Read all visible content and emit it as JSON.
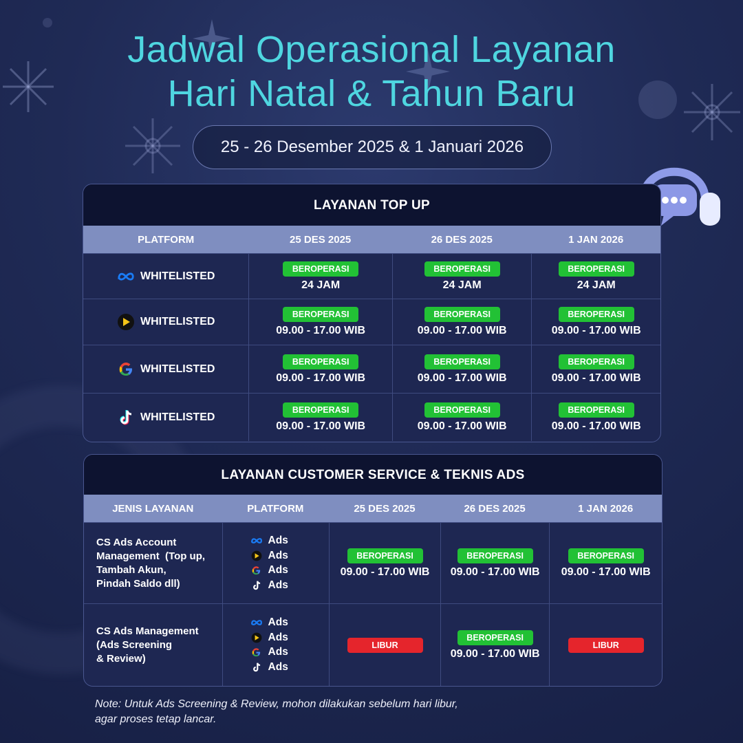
{
  "header": {
    "title_line1": "Jadwal Operasional Layanan",
    "title_line2": "Hari Natal & Tahun Baru",
    "date_range": "25 - 26 Desember 2025 & 1 Januari 2026"
  },
  "topup": {
    "title": "LAYANAN TOP UP",
    "columns": [
      "PLATFORM",
      "25 DES 2025",
      "26 DES 2025",
      "1 JAN 2026"
    ],
    "rows": [
      {
        "icon": "meta-icon",
        "platform": "WHITELISTED",
        "cells": [
          {
            "status": "BEROPERASI",
            "hours": "24 JAM"
          },
          {
            "status": "BEROPERASI",
            "hours": "24 JAM"
          },
          {
            "status": "BEROPERASI",
            "hours": "24 JAM"
          }
        ]
      },
      {
        "icon": "snack-video-icon",
        "platform": "WHITELISTED",
        "cells": [
          {
            "status": "BEROPERASI",
            "hours": "09.00 - 17.00 WIB"
          },
          {
            "status": "BEROPERASI",
            "hours": "09.00 - 17.00 WIB"
          },
          {
            "status": "BEROPERASI",
            "hours": "09.00 - 17.00 WIB"
          }
        ]
      },
      {
        "icon": "google-icon",
        "platform": "WHITELISTED",
        "cells": [
          {
            "status": "BEROPERASI",
            "hours": "09.00 - 17.00 WIB"
          },
          {
            "status": "BEROPERASI",
            "hours": "09.00 - 17.00 WIB"
          },
          {
            "status": "BEROPERASI",
            "hours": "09.00 - 17.00 WIB"
          }
        ]
      },
      {
        "icon": "tiktok-icon",
        "platform": "WHITELISTED",
        "cells": [
          {
            "status": "BEROPERASI",
            "hours": "09.00 - 17.00 WIB"
          },
          {
            "status": "BEROPERASI",
            "hours": "09.00 - 17.00 WIB"
          },
          {
            "status": "BEROPERASI",
            "hours": "09.00 - 17.00 WIB"
          }
        ]
      }
    ]
  },
  "cs": {
    "title": "LAYANAN CUSTOMER SERVICE & TEKNIS ADS",
    "columns": [
      "JENIS LAYANAN",
      "PLATFORM",
      "25 DES 2025",
      "26 DES 2025",
      "1 JAN 2026"
    ],
    "ads_label": "Ads",
    "rows": [
      {
        "service_lines": [
          "CS Ads Account",
          "Management  (Top up,",
          "Tambah Akun,",
          "Pindah Saldo dll)"
        ],
        "cells": [
          {
            "status": "BEROPERASI",
            "hours": "09.00 - 17.00 WIB"
          },
          {
            "status": "BEROPERASI",
            "hours": "09.00 - 17.00 WIB"
          },
          {
            "status": "BEROPERASI",
            "hours": "09.00 - 17.00 WIB"
          }
        ]
      },
      {
        "service_lines": [
          "CS Ads Management",
          "(Ads Screening",
          "& Review)"
        ],
        "cells": [
          {
            "status": "LIBUR",
            "hours": ""
          },
          {
            "status": "BEROPERASI",
            "hours": "09.00 - 17.00 WIB"
          },
          {
            "status": "LIBUR",
            "hours": ""
          }
        ]
      }
    ]
  },
  "note": {
    "line1": "Note: Untuk Ads Screening & Review, mohon dilakukan sebelum hari libur,",
    "line2": "agar proses tetap lancar."
  },
  "colors": {
    "title": "#4fd6e0",
    "ok": "#22c135",
    "off": "#e5252c",
    "header_bar": "#7f8ec0"
  }
}
